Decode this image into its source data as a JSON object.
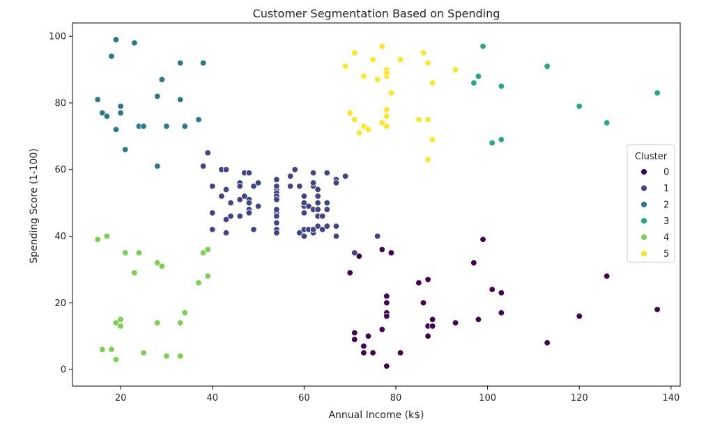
{
  "chart_data": {
    "type": "scatter",
    "title": "Customer Segmentation Based on Spending",
    "xlabel": "Annual Income (k$)",
    "ylabel": "Spending Score (1-100)",
    "xlim": [
      9.5,
      142
    ],
    "ylim": [
      -5,
      104
    ],
    "xticks": [
      20,
      40,
      60,
      80,
      100,
      120,
      140
    ],
    "yticks": [
      0,
      20,
      40,
      60,
      80,
      100
    ],
    "grid": false,
    "legend": {
      "title": "Cluster",
      "placement": "right"
    },
    "series": [
      {
        "name": "0",
        "color": "#440154",
        "points": [
          [
            70,
            29
          ],
          [
            71,
            11
          ],
          [
            71,
            9
          ],
          [
            72,
            34
          ],
          [
            73,
            5
          ],
          [
            73,
            7
          ],
          [
            74,
            10
          ],
          [
            75,
            5
          ],
          [
            77,
            12
          ],
          [
            77,
            36
          ],
          [
            78,
            22
          ],
          [
            78,
            20
          ],
          [
            78,
            17
          ],
          [
            78,
            16
          ],
          [
            78,
            1
          ],
          [
            79,
            35
          ],
          [
            81,
            5
          ],
          [
            85,
            26
          ],
          [
            86,
            20
          ],
          [
            87,
            27
          ],
          [
            87,
            13
          ],
          [
            87,
            10
          ],
          [
            88,
            15
          ],
          [
            88,
            13
          ],
          [
            93,
            14
          ],
          [
            97,
            32
          ],
          [
            98,
            15
          ],
          [
            99,
            39
          ],
          [
            101,
            24
          ],
          [
            103,
            23
          ],
          [
            103,
            17
          ],
          [
            113,
            8
          ],
          [
            120,
            16
          ],
          [
            126,
            28
          ],
          [
            137,
            18
          ]
        ]
      },
      {
        "name": "1",
        "color": "#414487",
        "points": [
          [
            38,
            61
          ],
          [
            39,
            65
          ],
          [
            40,
            55
          ],
          [
            40,
            47
          ],
          [
            40,
            42
          ],
          [
            42,
            52
          ],
          [
            42,
            60
          ],
          [
            43,
            60
          ],
          [
            43,
            54
          ],
          [
            43,
            45
          ],
          [
            43,
            41
          ],
          [
            44,
            50
          ],
          [
            44,
            46
          ],
          [
            46,
            51
          ],
          [
            46,
            46
          ],
          [
            46,
            56
          ],
          [
            46,
            55
          ],
          [
            47,
            52
          ],
          [
            47,
            59
          ],
          [
            48,
            59
          ],
          [
            48,
            51
          ],
          [
            48,
            50
          ],
          [
            48,
            48
          ],
          [
            48,
            47
          ],
          [
            49,
            55
          ],
          [
            49,
            42
          ],
          [
            50,
            49
          ],
          [
            50,
            56
          ],
          [
            54,
            47
          ],
          [
            54,
            54
          ],
          [
            54,
            53
          ],
          [
            54,
            48
          ],
          [
            54,
            52
          ],
          [
            54,
            42
          ],
          [
            54,
            51
          ],
          [
            54,
            55
          ],
          [
            54,
            41
          ],
          [
            54,
            44
          ],
          [
            54,
            57
          ],
          [
            54,
            46
          ],
          [
            57,
            58
          ],
          [
            57,
            55
          ],
          [
            58,
            60
          ],
          [
            59,
            55
          ],
          [
            59,
            41
          ],
          [
            60,
            49
          ],
          [
            60,
            40
          ],
          [
            60,
            42
          ],
          [
            60,
            52
          ],
          [
            60,
            47
          ],
          [
            60,
            50
          ],
          [
            61,
            42
          ],
          [
            61,
            49
          ],
          [
            62,
            41
          ],
          [
            62,
            48
          ],
          [
            62,
            59
          ],
          [
            62,
            55
          ],
          [
            62,
            56
          ],
          [
            62,
            42
          ],
          [
            63,
            50
          ],
          [
            63,
            46
          ],
          [
            63,
            43
          ],
          [
            63,
            48
          ],
          [
            63,
            52
          ],
          [
            63,
            54
          ],
          [
            64,
            42
          ],
          [
            64,
            46
          ],
          [
            65,
            48
          ],
          [
            65,
            50
          ],
          [
            65,
            43
          ],
          [
            65,
            59
          ],
          [
            67,
            43
          ],
          [
            67,
            57
          ],
          [
            67,
            56
          ],
          [
            67,
            40
          ],
          [
            69,
            58
          ],
          [
            71,
            35
          ],
          [
            76,
            40
          ]
        ]
      },
      {
        "name": "2",
        "color": "#2a788e",
        "points": [
          [
            15,
            81
          ],
          [
            16,
            77
          ],
          [
            17,
            76
          ],
          [
            18,
            94
          ],
          [
            19,
            72
          ],
          [
            19,
            99
          ],
          [
            20,
            77
          ],
          [
            20,
            79
          ],
          [
            21,
            66
          ],
          [
            23,
            98
          ],
          [
            24,
            73
          ],
          [
            25,
            73
          ],
          [
            28,
            82
          ],
          [
            28,
            61
          ],
          [
            29,
            87
          ],
          [
            30,
            73
          ],
          [
            33,
            92
          ],
          [
            33,
            81
          ],
          [
            34,
            73
          ],
          [
            37,
            75
          ],
          [
            38,
            92
          ]
        ]
      },
      {
        "name": "3",
        "color": "#22a884",
        "points": [
          [
            97,
            86
          ],
          [
            98,
            88
          ],
          [
            99,
            97
          ],
          [
            101,
            68
          ],
          [
            103,
            85
          ],
          [
            103,
            69
          ],
          [
            113,
            91
          ],
          [
            120,
            79
          ],
          [
            126,
            74
          ],
          [
            137,
            83
          ]
        ]
      },
      {
        "name": "4",
        "color": "#7ad151",
        "points": [
          [
            15,
            39
          ],
          [
            16,
            6
          ],
          [
            17,
            40
          ],
          [
            18,
            6
          ],
          [
            19,
            3
          ],
          [
            19,
            14
          ],
          [
            20,
            15
          ],
          [
            20,
            13
          ],
          [
            21,
            35
          ],
          [
            23,
            29
          ],
          [
            24,
            35
          ],
          [
            25,
            5
          ],
          [
            28,
            14
          ],
          [
            28,
            32
          ],
          [
            29,
            31
          ],
          [
            30,
            4
          ],
          [
            33,
            4
          ],
          [
            33,
            14
          ],
          [
            34,
            17
          ],
          [
            37,
            26
          ],
          [
            38,
            35
          ],
          [
            39,
            36
          ],
          [
            39,
            28
          ]
        ]
      },
      {
        "name": "5",
        "color": "#fde725",
        "points": [
          [
            69,
            91
          ],
          [
            70,
            77
          ],
          [
            71,
            95
          ],
          [
            71,
            75
          ],
          [
            72,
            71
          ],
          [
            73,
            88
          ],
          [
            73,
            73
          ],
          [
            74,
            72
          ],
          [
            75,
            93
          ],
          [
            76,
            87
          ],
          [
            77,
            97
          ],
          [
            77,
            74
          ],
          [
            78,
            90
          ],
          [
            78,
            88
          ],
          [
            78,
            89
          ],
          [
            78,
            78
          ],
          [
            78,
            76
          ],
          [
            78,
            73
          ],
          [
            79,
            83
          ],
          [
            81,
            93
          ],
          [
            85,
            75
          ],
          [
            86,
            95
          ],
          [
            87,
            92
          ],
          [
            87,
            75
          ],
          [
            87,
            63
          ],
          [
            88,
            86
          ],
          [
            88,
            69
          ],
          [
            93,
            90
          ]
        ]
      }
    ]
  }
}
